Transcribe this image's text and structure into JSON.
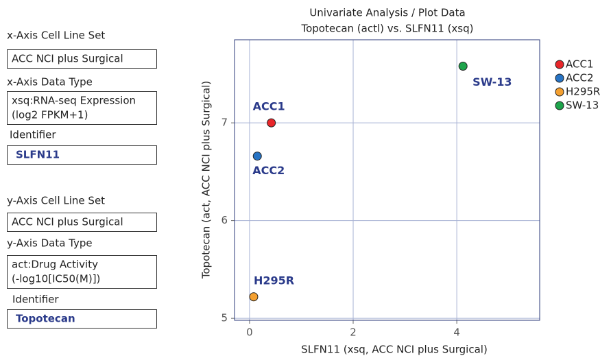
{
  "panel": {
    "fields": [
      {
        "label": "x-Axis Cell Line Set",
        "lines": [
          "ACC NCI plus Surgical"
        ]
      },
      {
        "label": "x-Axis Data Type",
        "lines": [
          "xsq:RNA-seq Expression",
          "(log2 FPKM+1)"
        ]
      },
      {
        "label": "Identifier",
        "lines": [
          "SLFN11"
        ]
      },
      {
        "label": "y-Axis Cell Line Set",
        "lines": [
          "ACC NCI plus Surgical"
        ]
      },
      {
        "label": "y-Axis Data Type",
        "lines": [
          "act:Drug Activity",
          "(-log10[IC50(M)])"
        ]
      },
      {
        "label": "Identifier",
        "lines": [
          "Topotecan"
        ]
      }
    ]
  },
  "chart_data": {
    "type": "scatter",
    "title": "Univariate Analysis / Plot Data",
    "subtitle": "Topotecan (actl) vs. SLFN11 (xsq)",
    "x_label": "SLFN11 (xsq, ACC NCI plus Surgical)",
    "y_label": "Topotecan (act, ACC NCI plus Surgical)",
    "xlim": [
      -0.29,
      5.6
    ],
    "ylim": [
      4.98,
      7.85
    ],
    "xticks": [
      0,
      2,
      4
    ],
    "yticks": [
      5,
      6,
      7
    ],
    "grid": true,
    "legend": "right",
    "series": [
      {
        "name": "ACC1",
        "color": "#e8262a",
        "x": [
          0.42
        ],
        "values": [
          7.0
        ]
      },
      {
        "name": "ACC2",
        "color": "#2673c4",
        "x": [
          0.15
        ],
        "values": [
          6.66
        ]
      },
      {
        "name": "H295R",
        "color": "#f4a030",
        "x": [
          0.08
        ],
        "values": [
          5.22
        ]
      },
      {
        "name": "SW-13",
        "color": "#1ea44b",
        "x": [
          4.12
        ],
        "values": [
          7.58
        ]
      }
    ]
  }
}
